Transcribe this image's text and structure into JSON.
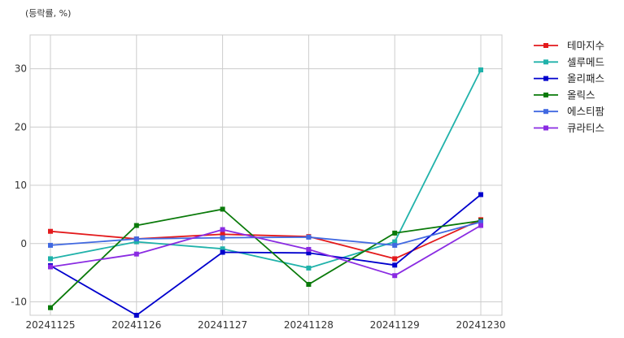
{
  "chart_data": {
    "type": "line",
    "unit_label": "(등락률, %)",
    "categories": [
      "20241125",
      "20241126",
      "20241127",
      "20241128",
      "20241129",
      "20241230"
    ],
    "ylim": [
      -12.3,
      35.8
    ],
    "yticks": [
      -10,
      0,
      10,
      20,
      30
    ],
    "ytick_labels": [
      "-10",
      "0",
      "10",
      "20",
      "30"
    ],
    "grid": true,
    "legend_position": "right",
    "series": [
      {
        "name": "테마지수",
        "color": "#e31a1c",
        "values": [
          2.1,
          0.8,
          1.6,
          1.2,
          -2.6,
          4.1
        ]
      },
      {
        "name": "셀루메드",
        "color": "#20b2aa",
        "values": [
          -2.6,
          0.3,
          -0.9,
          -4.2,
          0.3,
          29.8
        ]
      },
      {
        "name": "올리패스",
        "color": "#0000cd",
        "values": [
          -3.8,
          -12.3,
          -1.5,
          -1.6,
          -3.7,
          8.4
        ]
      },
      {
        "name": "올릭스",
        "color": "#0a7a0a",
        "values": [
          -11.0,
          3.1,
          5.9,
          -7.0,
          1.8,
          3.9
        ]
      },
      {
        "name": "에스티팜",
        "color": "#4169e1",
        "values": [
          -0.3,
          0.8,
          1.0,
          1.1,
          -0.3,
          3.7
        ]
      },
      {
        "name": "큐라티스",
        "color": "#8a2be2",
        "values": [
          -4.0,
          -1.8,
          2.4,
          -1.0,
          -5.5,
          3.1
        ]
      }
    ]
  }
}
